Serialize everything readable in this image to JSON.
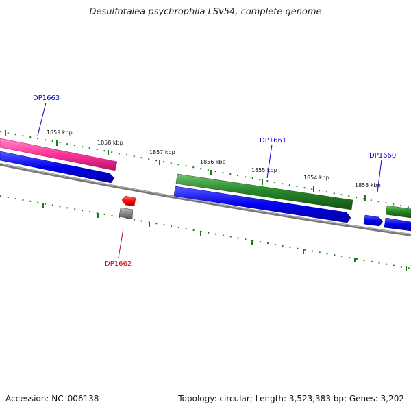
{
  "title": "Desulfotalea psychrophila LSv54, complete genome",
  "ticks": [
    "1859 kbp",
    "1858 kbp",
    "1857 kbp",
    "1856 kbp",
    "1855 kbp",
    "1854 kbp",
    "1853 kbp"
  ],
  "genes": [
    {
      "label": "DP1663",
      "color": "#0000cc"
    },
    {
      "label": "DP1662",
      "color": "#cc0000"
    },
    {
      "label": "DP1661",
      "color": "#0000cc"
    },
    {
      "label": "DP1660",
      "color": "#0000cc"
    }
  ],
  "colors": {
    "forward_strand": "#2a8a2a",
    "reverse_strand": "#0000ee",
    "highlight": "#ff3399",
    "backbone": "#777777",
    "tick_marks": "#1a7a1a",
    "selected_gene": "#ff0000"
  },
  "footer": {
    "accession": "Accession: NC_006138",
    "summary": "Topology: circular; Length: 3,523,383 bp; Genes: 3,202"
  }
}
